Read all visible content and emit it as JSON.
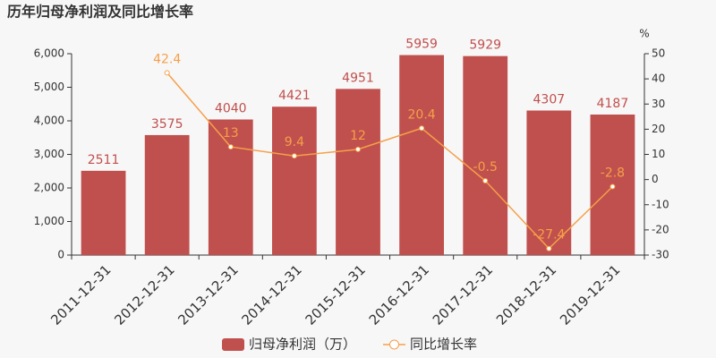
{
  "chart_data": {
    "type": "bar",
    "title": "历年归母净利润及同比增长率",
    "categories": [
      "2011-12-31",
      "2012-12-31",
      "2013-12-31",
      "2014-12-31",
      "2015-12-31",
      "2016-12-31",
      "2017-12-31",
      "2018-12-31",
      "2019-12-31"
    ],
    "series": [
      {
        "name": "归母净利润（万）",
        "type": "bar",
        "color": "#c0504d",
        "values": [
          2511,
          3575,
          4040,
          4421,
          4951,
          5959,
          5929,
          4307,
          4187
        ]
      },
      {
        "name": "同比增长率",
        "type": "line",
        "axis": "y2",
        "color": "#f5a04a",
        "values": [
          null,
          42.4,
          13,
          9.4,
          12,
          20.4,
          -0.5,
          -27.4,
          -2.8
        ]
      }
    ],
    "ylim": [
      0,
      6000
    ],
    "yticks": [
      0,
      {
        "value": 1000,
        "label": "1,000"
      },
      {
        "value": 2000,
        "label": "2,000"
      },
      {
        "value": 3000,
        "label": "3,000"
      },
      {
        "value": 4000,
        "label": "4,000"
      },
      {
        "value": 5000,
        "label": "5,000"
      },
      {
        "value": 6000,
        "label": "6,000"
      }
    ],
    "y2label": "%",
    "y2lim": [
      -30,
      50
    ],
    "y2ticks": [
      -30,
      -20,
      -10,
      0,
      10,
      20,
      30,
      40,
      50
    ],
    "legend": "bottom"
  }
}
